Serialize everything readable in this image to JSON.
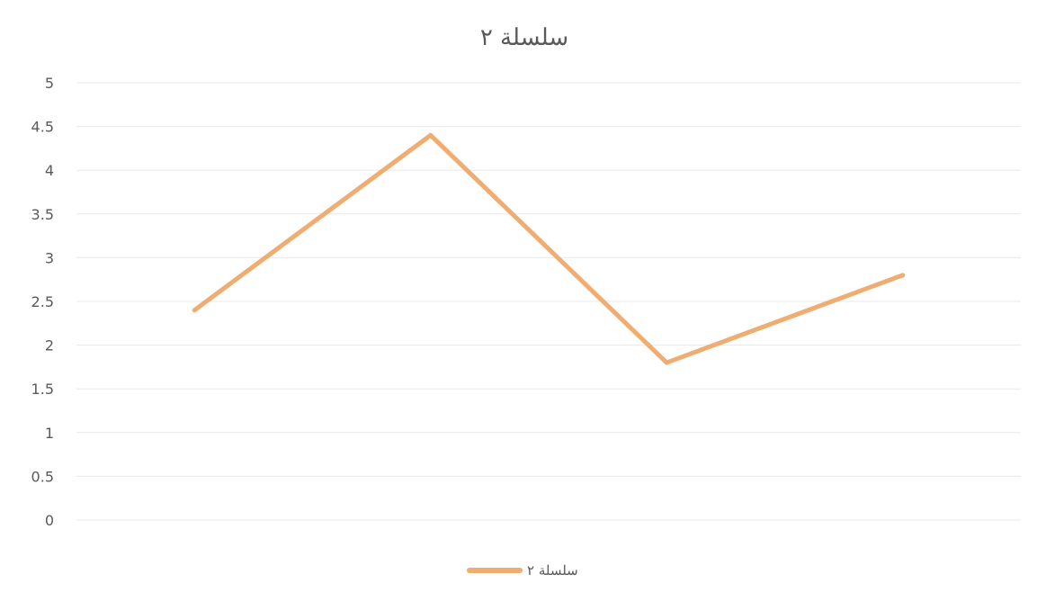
{
  "chart_data": {
    "type": "line",
    "title": "سلسلة ٢",
    "categories": [
      "",
      "",
      "",
      ""
    ],
    "series": [
      {
        "name": "سلسلة ٢",
        "values": [
          2.4,
          4.4,
          1.8,
          2.8
        ]
      }
    ],
    "ylim": [
      0,
      5
    ],
    "yticks": [
      "0",
      "0.5",
      "1",
      "1.5",
      "2",
      "2.5",
      "3",
      "3.5",
      "4",
      "4.5",
      "5"
    ],
    "grid": true,
    "legend_position": "bottom",
    "colors": {
      "series": "#F0AD72",
      "grid": "#e8e8e8",
      "text": "#595959"
    }
  }
}
